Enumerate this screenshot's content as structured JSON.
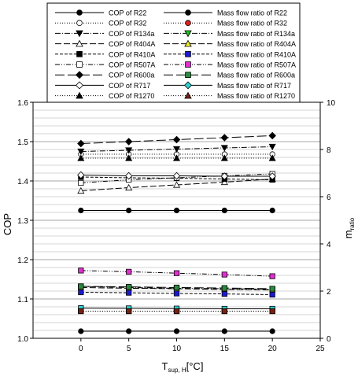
{
  "chart_data": {
    "type": "line",
    "x": [
      0,
      5,
      10,
      15,
      20
    ],
    "xlim": [
      -5,
      25
    ],
    "x_ticks": [
      0,
      5,
      10,
      15,
      20,
      25
    ],
    "xlabel_main": "T",
    "xlabel_sub": "sup, H",
    "xlabel_unit": "[°C]",
    "ylabel": "COP",
    "ylim": [
      1.0,
      1.6
    ],
    "y_ticks": [
      "1.0",
      "1.1",
      "1.2",
      "1.3",
      "1.4",
      "1.5",
      "1.6"
    ],
    "y2label_main": "m",
    "y2label_sub": "ratio",
    "y2lim": [
      0,
      10
    ],
    "y2_ticks": [
      "0",
      "2",
      "4",
      "6",
      "8",
      "10"
    ],
    "grid": "horizontal",
    "legend_position": "top",
    "cop_series": [
      {
        "name": "COP of R22",
        "values": [
          1.325,
          1.325,
          1.325,
          1.325,
          1.325
        ],
        "marker": "circle",
        "fill": "#000000",
        "dash": ""
      },
      {
        "name": "COP of R32",
        "values": [
          1.468,
          1.468,
          1.468,
          1.468,
          1.468
        ],
        "marker": "circle",
        "fill": "#ffffff",
        "dash": "1,2"
      },
      {
        "name": "COP of R134a",
        "values": [
          1.475,
          1.478,
          1.481,
          1.484,
          1.487
        ],
        "marker": "tri-down",
        "fill": "#000000",
        "dash": "7,2,1,2"
      },
      {
        "name": "COP of R404A",
        "values": [
          1.375,
          1.383,
          1.39,
          1.397,
          1.405
        ],
        "marker": "tri-up",
        "fill": "#ffffff",
        "dash": "8,3"
      },
      {
        "name": "COP of R410A",
        "values": [
          1.41,
          1.408,
          1.407,
          1.405,
          1.403
        ],
        "marker": "square",
        "fill": "#000000",
        "dash": "4,2"
      },
      {
        "name": "COP of R507A",
        "values": [
          1.395,
          1.403,
          1.408,
          1.413,
          1.418
        ],
        "marker": "square",
        "fill": "#ffffff",
        "dash": "6,2,1,2,1,2"
      },
      {
        "name": "COP of R600a",
        "values": [
          1.495,
          1.5,
          1.505,
          1.51,
          1.515
        ],
        "marker": "diamond",
        "fill": "#000000",
        "dash": "12,4"
      },
      {
        "name": "COP of R717",
        "values": [
          1.415,
          1.413,
          1.413,
          1.412,
          1.412
        ],
        "marker": "diamond",
        "fill": "#ffffff",
        "dash": ""
      },
      {
        "name": "COP of R1270",
        "values": [
          1.458,
          1.458,
          1.458,
          1.458,
          1.458
        ],
        "marker": "tri-up",
        "fill": "#000000",
        "dash": "1,2"
      }
    ],
    "mass_series": [
      {
        "name": "Mass flow ratio of R22",
        "values": [
          0.3,
          0.3,
          0.3,
          0.3,
          0.3
        ],
        "fill": "#000000",
        "dash": ""
      },
      {
        "name": "Mass flow ratio of R32",
        "values": [
          1.15,
          1.15,
          1.15,
          1.15,
          1.15
        ],
        "fill": "#e02020",
        "dash": "1,2"
      },
      {
        "name": "Mass flow ratio of R134a",
        "values": [
          2.2,
          2.15,
          2.12,
          2.1,
          2.08
        ],
        "fill": "#20c020",
        "dash": "7,2,1,2"
      },
      {
        "name": "Mass flow ratio of R404A",
        "values": [
          2.15,
          2.12,
          2.1,
          2.07,
          2.05
        ],
        "fill": "#f0f020",
        "dash": "8,3"
      },
      {
        "name": "Mass flow ratio of R410A",
        "values": [
          1.95,
          1.93,
          1.9,
          1.88,
          1.85
        ],
        "fill": "#1a1ad0",
        "dash": "4,2"
      },
      {
        "name": "Mass flow ratio of R507A",
        "values": [
          2.87,
          2.82,
          2.76,
          2.7,
          2.63
        ],
        "fill": "#e030d0",
        "dash": "6,2,1,2,1,2"
      },
      {
        "name": "Mass flow ratio of R600a",
        "values": [
          2.2,
          2.18,
          2.15,
          2.13,
          2.1
        ],
        "fill": "#2a8a40",
        "dash": "12,4"
      },
      {
        "name": "Mass flow ratio of R717",
        "values": [
          1.28,
          1.27,
          1.26,
          1.25,
          1.25
        ],
        "fill": "#30d0d0",
        "dash": ""
      },
      {
        "name": "Mass flow ratio of R1270",
        "values": [
          1.15,
          1.15,
          1.15,
          1.15,
          1.15
        ],
        "fill": "#7a2010",
        "dash": "1,2"
      }
    ]
  }
}
